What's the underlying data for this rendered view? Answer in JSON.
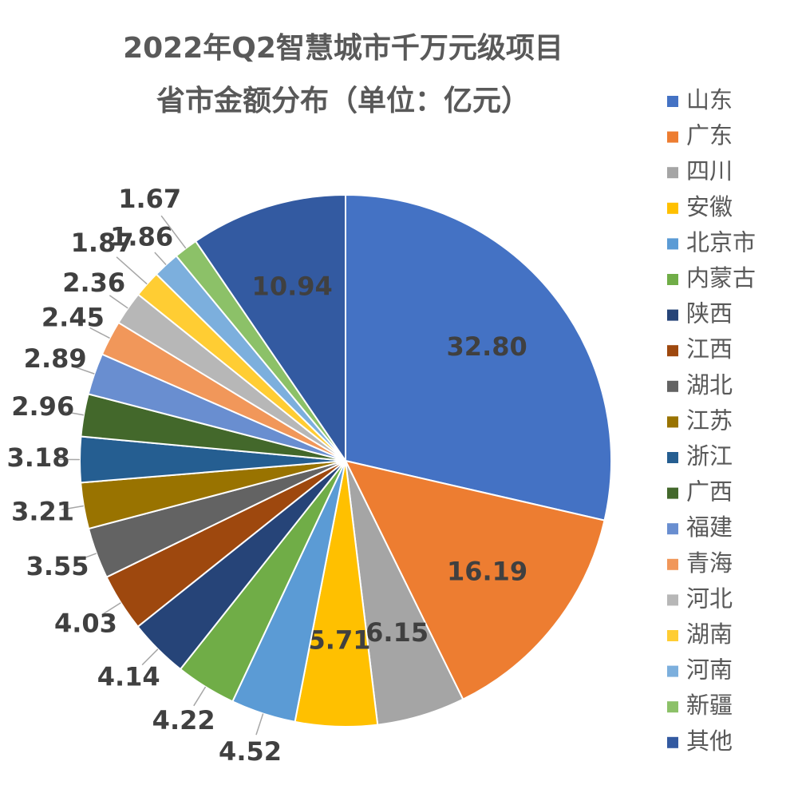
{
  "chart_data": {
    "type": "pie",
    "title": [
      "2022年Q2智慧城市千万元级项目",
      "省市金额分布（单位：亿元）"
    ],
    "categories": [
      "山东",
      "广东",
      "四川",
      "安徽",
      "北京市",
      "内蒙古",
      "陕西",
      "江西",
      "湖北",
      "江苏",
      "浙江",
      "广西",
      "福建",
      "青海",
      "河北",
      "湖南",
      "河南",
      "新疆",
      "其他"
    ],
    "values": [
      32.8,
      16.19,
      6.15,
      5.71,
      4.52,
      4.22,
      4.14,
      4.03,
      3.55,
      3.21,
      3.18,
      2.96,
      2.89,
      2.45,
      2.36,
      1.87,
      1.86,
      1.67,
      10.94
    ],
    "value_labels": [
      "32.80",
      "16.19",
      "6.15",
      "5.71",
      "4.52",
      "4.22",
      "4.14",
      "4.03",
      "3.55",
      "3.21",
      "3.18",
      "2.96",
      "2.89",
      "2.45",
      "2.36",
      "1.87",
      "1.86",
      "1.67",
      "10.94"
    ],
    "colors": [
      "#4472c4",
      "#ed7d31",
      "#a5a5a5",
      "#ffc000",
      "#5b9bd5",
      "#70ad47",
      "#264478",
      "#9e480e",
      "#636363",
      "#997300",
      "#255e91",
      "#43682b",
      "#698ed0",
      "#f1975a",
      "#b7b7b7",
      "#ffcd33",
      "#7cafdd",
      "#8cc168",
      "#335aa1"
    ],
    "legend": "right"
  }
}
